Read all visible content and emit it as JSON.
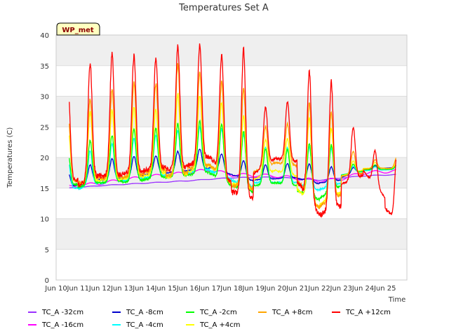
{
  "chart_data": {
    "type": "line",
    "title": "Temperatures Set A",
    "xlabel": "Time",
    "ylabel": "Temperatures (C)",
    "badge": "WP_met",
    "ylim": [
      0,
      40
    ],
    "xlim": [
      0,
      16
    ],
    "y_ticks": [
      0,
      5,
      10,
      15,
      20,
      25,
      30,
      35,
      40
    ],
    "x_ticks": [
      {
        "pos": 0,
        "label": "Jun 10"
      },
      {
        "pos": 1,
        "label": "Jun 11"
      },
      {
        "pos": 2,
        "label": "Jun 12"
      },
      {
        "pos": 3,
        "label": "Jun 13"
      },
      {
        "pos": 4,
        "label": "Jun 14"
      },
      {
        "pos": 5,
        "label": "Jun 15"
      },
      {
        "pos": 6,
        "label": "Jun 16"
      },
      {
        "pos": 7,
        "label": "Jun 17"
      },
      {
        "pos": 8,
        "label": "Jun 18"
      },
      {
        "pos": 9,
        "label": "Jun 19"
      },
      {
        "pos": 10,
        "label": "Jun 20"
      },
      {
        "pos": 11,
        "label": "Jun 21"
      },
      {
        "pos": 12,
        "label": "Jun 22"
      },
      {
        "pos": 13,
        "label": "Jun 23"
      },
      {
        "pos": 14,
        "label": "Jun 24"
      },
      {
        "pos": 15,
        "label": "Jun 25"
      }
    ],
    "grid": "horizontal bands",
    "legend_position": "bottom",
    "x_start": 0.6,
    "x_end": 15.5,
    "series": [
      {
        "name": "TC_A -32cm",
        "color": "#9b30ff",
        "amp": 0.05,
        "x": [
          0.6,
          2,
          4,
          6,
          8,
          10,
          12,
          14,
          15.5
        ],
        "y": [
          15.0,
          15.4,
          15.8,
          16.2,
          16.7,
          16.8,
          16.3,
          17.0,
          17.2
        ]
      },
      {
        "name": "TC_A -16cm",
        "color": "#ff00ff",
        "amp": 0.25,
        "x": [
          0.6,
          2,
          4,
          6,
          7,
          8,
          10,
          12,
          13,
          14,
          15.5
        ],
        "y": [
          15.2,
          15.8,
          16.8,
          17.5,
          18.0,
          17.2,
          17.0,
          16.2,
          16.5,
          17.5,
          17.8
        ]
      },
      {
        "name": "TC_A -8cm",
        "color": "#0000cc",
        "amp": 0.55,
        "x": [
          0.6,
          2,
          4,
          6,
          7,
          8,
          9,
          10,
          11,
          12,
          13,
          14,
          15.5
        ],
        "y": [
          15.8,
          17.2,
          18.0,
          18.8,
          19.2,
          18.0,
          17.0,
          17.2,
          17.4,
          16.5,
          17.0,
          18.2,
          18.5
        ]
      },
      {
        "name": "TC_A -4cm",
        "color": "#00ffff",
        "amp": 0.9,
        "x": [
          0.6,
          2,
          4,
          6,
          7,
          8,
          9,
          10,
          11,
          12,
          13,
          14,
          15.5
        ],
        "y": [
          16.0,
          17.5,
          18.5,
          19.5,
          20.0,
          18.5,
          17.5,
          17.5,
          17.5,
          16.5,
          17.5,
          18.0,
          18.2
        ]
      },
      {
        "name": "TC_A -2cm",
        "color": "#00ff00",
        "amp": 1.0,
        "x": [
          0.6,
          2,
          4,
          6,
          7,
          8,
          9,
          10,
          11,
          12,
          13,
          14,
          15.5
        ],
        "y": [
          16.8,
          18.0,
          18.7,
          19.5,
          20.0,
          18.0,
          17.0,
          17.5,
          17.0,
          15.5,
          17.5,
          18.2,
          18.3
        ]
      },
      {
        "name": "TC_A +4cm",
        "color": "#ffff00",
        "amp": 1.0,
        "x": [
          0.6,
          2,
          4,
          6,
          7,
          8,
          9,
          10,
          11,
          12,
          13,
          14,
          15.5
        ],
        "y": [
          18.5,
          19.5,
          20.0,
          21.0,
          22.0,
          19.0,
          18.0,
          19.5,
          18.5,
          15.5,
          17.5,
          18.5,
          18.5
        ]
      },
      {
        "name": "TC_A +8cm",
        "color": "#ffa500",
        "amp": 1.0,
        "x": [
          0.6,
          2,
          4,
          6,
          7,
          8,
          9,
          10,
          11,
          12,
          13,
          14,
          15.5
        ],
        "y": [
          19.0,
          20.5,
          21.5,
          22.5,
          23.0,
          20.0,
          19.5,
          21.0,
          20.5,
          16.0,
          18.0,
          18.5,
          18.8
        ]
      },
      {
        "name": "TC_A +12cm",
        "color": "#ff0000",
        "amp": 1.0,
        "x": [
          0.6,
          2,
          4,
          6,
          7,
          8,
          9,
          10,
          11,
          12,
          13,
          14,
          15.5
        ],
        "y": [
          20.0,
          22.5,
          23.0,
          24.0,
          25.5,
          21.0,
          20.0,
          22.5,
          22.0,
          16.5,
          18.0,
          19.5,
          12.8
        ]
      }
    ],
    "daily_swing": {
      "TC_A +12cm": [
        16.0,
        20.0,
        21.0,
        20.0,
        19.0,
        21.0,
        20.0,
        20.0,
        25.0,
        10.0,
        10.0,
        22.0,
        22.0,
        9.0,
        6.0,
        12.0
      ],
      "TC_A +8cm": [
        11.5,
        14.0,
        15.0,
        16.0,
        15.0,
        19.0,
        16.0,
        16.0,
        17.0,
        7.0,
        7.0,
        16.0,
        15.0,
        4.0,
        1.5,
        2.0
      ],
      "TC_A +4cm": [
        9.0,
        12.0,
        12.0,
        12.0,
        11.0,
        14.0,
        12.5,
        12.5,
        12.0,
        6.0,
        6.0,
        14.0,
        12.0,
        2.0,
        1.0,
        1.0
      ],
      "TC_A -2cm": [
        5.5,
        7.5,
        8.0,
        9.0,
        8.5,
        9.0,
        9.0,
        9.5,
        10.0,
        6.0,
        6.0,
        9.0,
        8.0,
        1.5,
        0.8,
        0.8
      ],
      "TC_A -4cm": [
        5.0,
        6.0,
        6.5,
        7.0,
        7.0,
        7.5,
        7.5,
        8.0,
        8.5,
        6.0,
        6.0,
        7.0,
        6.5,
        1.2,
        0.6,
        0.6
      ],
      "TC_A -8cm": [
        2.5,
        3.0,
        3.5,
        3.5,
        3.0,
        3.5,
        3.5,
        3.0,
        3.0,
        2.5,
        2.5,
        3.0,
        2.5,
        1.0,
        0.5,
        0.5
      ]
    }
  }
}
